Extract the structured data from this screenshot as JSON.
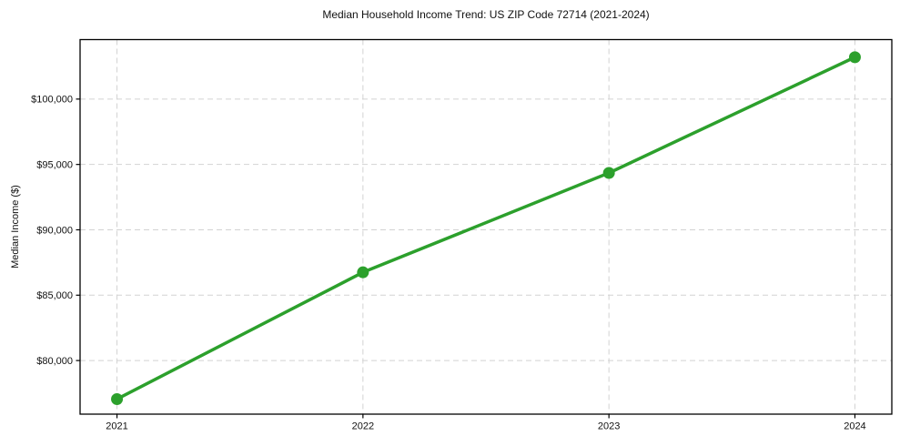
{
  "chart_data": {
    "type": "line",
    "title": "Median Household Income Trend: US ZIP Code 72714 (2021-2024)",
    "xlabel": "",
    "ylabel": "Median Income ($)",
    "x": [
      2021,
      2022,
      2023,
      2024
    ],
    "xtick_labels": [
      "2021",
      "2022",
      "2023",
      "2024"
    ],
    "series": [
      {
        "name": "Median household income",
        "values": [
          77050,
          86750,
          94350,
          103200
        ],
        "color": "#2ca02c"
      }
    ],
    "yticks": [
      80000,
      85000,
      90000,
      95000,
      100000
    ],
    "ytick_labels": [
      "$80,000",
      "$85,000",
      "$90,000",
      "$95,000",
      "$100,000"
    ],
    "ylim": [
      75900,
      104550
    ],
    "xlim": [
      2020.85,
      2024.15
    ],
    "grid": true,
    "grid_style": "dashed",
    "legend_position": "none",
    "colors": {
      "line": "#2ca02c",
      "grid": "#d2d2d2",
      "frame": "#000000",
      "text": "#111111",
      "background": "#ffffff"
    }
  }
}
